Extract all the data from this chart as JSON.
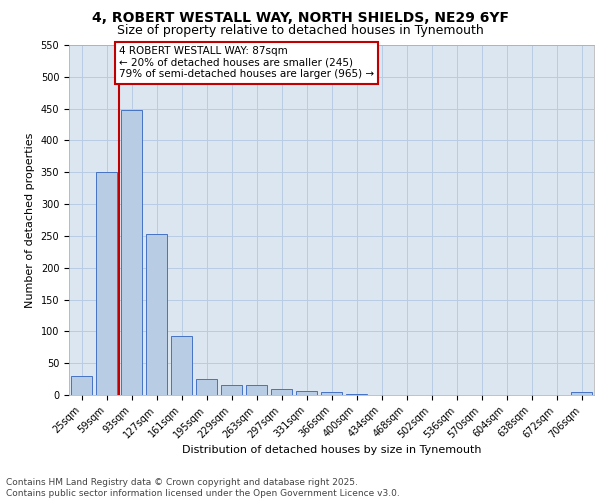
{
  "title_line1": "4, ROBERT WESTALL WAY, NORTH SHIELDS, NE29 6YF",
  "title_line2": "Size of property relative to detached houses in Tynemouth",
  "xlabel": "Distribution of detached houses by size in Tynemouth",
  "ylabel": "Number of detached properties",
  "categories": [
    "25sqm",
    "59sqm",
    "93sqm",
    "127sqm",
    "161sqm",
    "195sqm",
    "229sqm",
    "263sqm",
    "297sqm",
    "331sqm",
    "366sqm",
    "400sqm",
    "434sqm",
    "468sqm",
    "502sqm",
    "536sqm",
    "570sqm",
    "604sqm",
    "638sqm",
    "672sqm",
    "706sqm"
  ],
  "values": [
    30,
    350,
    448,
    253,
    93,
    25,
    16,
    15,
    10,
    6,
    5,
    1,
    0,
    0,
    0,
    0,
    0,
    0,
    0,
    0,
    4
  ],
  "bar_color": "#b8cce4",
  "bar_edge_color": "#4472c4",
  "vline_color": "#c00000",
  "annotation_text": "4 ROBERT WESTALL WAY: 87sqm\n← 20% of detached houses are smaller (245)\n79% of semi-detached houses are larger (965) →",
  "annotation_box_color": "#c00000",
  "ylim": [
    0,
    550
  ],
  "yticks": [
    0,
    50,
    100,
    150,
    200,
    250,
    300,
    350,
    400,
    450,
    500,
    550
  ],
  "grid_color": "#b8cce4",
  "background_color": "#dce6f1",
  "footer_line1": "Contains HM Land Registry data © Crown copyright and database right 2025.",
  "footer_line2": "Contains public sector information licensed under the Open Government Licence v3.0.",
  "title_fontsize": 10,
  "subtitle_fontsize": 9,
  "axis_label_fontsize": 8,
  "tick_fontsize": 7,
  "annotation_fontsize": 7.5,
  "footer_fontsize": 6.5
}
